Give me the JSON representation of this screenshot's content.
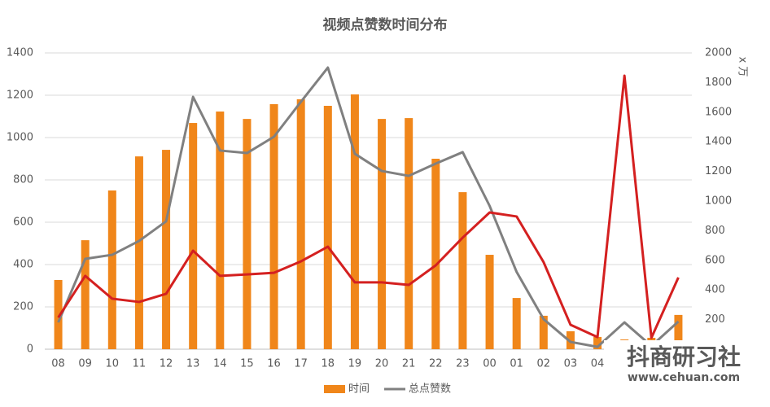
{
  "chart_data": {
    "type": "combo",
    "title": "视频点赞数时间分布",
    "y2_label": "x 万",
    "categories": [
      "08",
      "09",
      "10",
      "11",
      "12",
      "13",
      "14",
      "15",
      "16",
      "17",
      "18",
      "19",
      "20",
      "21",
      "22",
      "23",
      "00",
      "01",
      "02",
      "03",
      "04",
      null,
      null,
      null
    ],
    "series": [
      {
        "name": "时间",
        "type": "bar",
        "color": "#f0861a",
        "values": [
          327,
          515,
          750,
          911,
          942,
          1069,
          1123,
          1088,
          1158,
          1181,
          1150,
          1204,
          1088,
          1092,
          900,
          742,
          446,
          242,
          158,
          85,
          58,
          46,
          54,
          162
        ]
      },
      {
        "name": "总点赞数",
        "type": "line",
        "axis": "y2",
        "color": "#808080",
        "values": [
          181,
          610,
          637,
          731,
          863,
          1703,
          1341,
          1324,
          1434,
          1670,
          1901,
          1319,
          1203,
          1170,
          1253,
          1330,
          967,
          522,
          203,
          49,
          16,
          181,
          22,
          187
        ]
      },
      {
        "type": "line",
        "axis": "y2",
        "color": "#d42020",
        "values": [
          214,
          495,
          341,
          319,
          374,
          665,
          495,
          505,
          516,
          593,
          692,
          451,
          451,
          434,
          566,
          753,
          923,
          896,
          588,
          165,
          82,
          1846,
          77,
          484
        ]
      }
    ],
    "ylim": [
      0,
      1400
    ],
    "yticks": [
      0,
      200,
      400,
      600,
      800,
      1000,
      1200,
      1400
    ],
    "y2lim": [
      0,
      2000
    ],
    "y2ticks": [
      0,
      200,
      400,
      600,
      800,
      1000,
      1200,
      1400,
      1600,
      1800,
      2000
    ],
    "grid": true,
    "legend": "bottom"
  },
  "watermark": {
    "title": "抖商研习社",
    "url": "www.cehuan.com"
  }
}
